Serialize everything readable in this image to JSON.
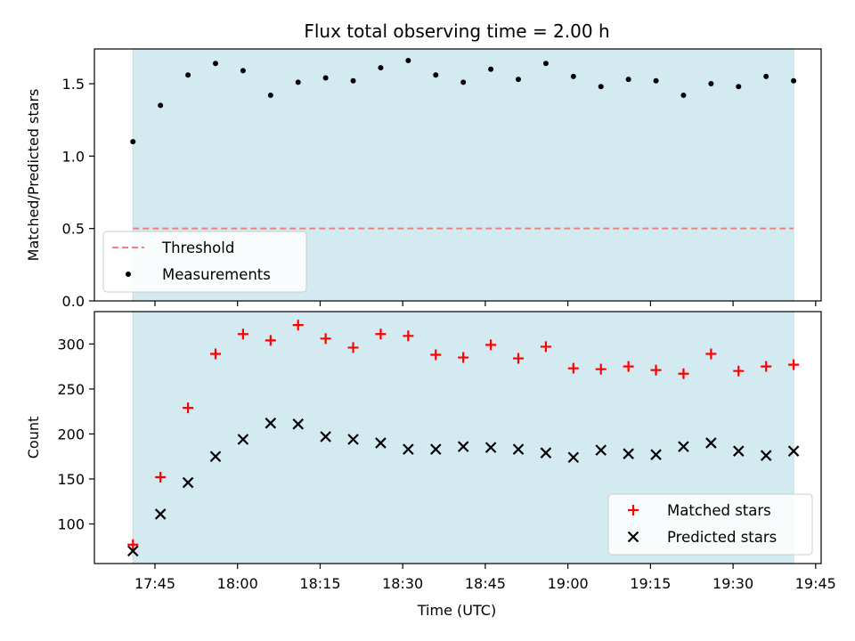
{
  "chart_data": {
    "title": "Flux total observing time = 2.00 h",
    "xlabel": "Time (UTC)",
    "x_tick_labels": [
      "17:45",
      "18:00",
      "18:15",
      "18:30",
      "18:45",
      "19:00",
      "19:15",
      "19:30",
      "19:45"
    ],
    "x_tick_minutes": [
      1065,
      1080,
      1095,
      1110,
      1125,
      1140,
      1155,
      1170,
      1185
    ],
    "x_range_minutes": [
      1054,
      1186
    ],
    "observing_window_minutes": [
      1061,
      1181
    ],
    "window_color": "#d3eaf0",
    "times": [
      "17:41",
      "17:46",
      "17:51",
      "17:56",
      "18:01",
      "18:06",
      "18:11",
      "18:16",
      "18:21",
      "18:26",
      "18:31",
      "18:36",
      "18:41",
      "18:46",
      "18:51",
      "18:56",
      "19:01",
      "19:06",
      "19:11",
      "19:16",
      "19:21",
      "19:26",
      "19:31",
      "19:36",
      "19:41"
    ],
    "panels": [
      {
        "type": "scatter",
        "ylabel": "Matched/Predicted stars",
        "ylim": [
          0,
          1.74
        ],
        "y_ticks": [
          0.0,
          0.5,
          1.0,
          1.5
        ],
        "y_tick_labels": [
          "0.0",
          "0.5",
          "1.0",
          "1.5"
        ],
        "threshold": {
          "name": "Threshold",
          "value": 0.5,
          "color": "#f08080",
          "style": "dashed"
        },
        "series": [
          {
            "name": "Measurements",
            "marker": "dot",
            "color": "#000000",
            "values": [
              1.1,
              1.35,
              1.56,
              1.64,
              1.59,
              1.42,
              1.51,
              1.54,
              1.52,
              1.61,
              1.66,
              1.56,
              1.51,
              1.6,
              1.53,
              1.64,
              1.55,
              1.48,
              1.53,
              1.52,
              1.42,
              1.5,
              1.48,
              1.55,
              1.52
            ]
          }
        ],
        "legend_position": "lower-left"
      },
      {
        "type": "scatter",
        "ylabel": "Count",
        "ylim": [
          56,
          336
        ],
        "y_ticks": [
          100,
          150,
          200,
          250,
          300
        ],
        "y_tick_labels": [
          "100",
          "150",
          "200",
          "250",
          "300"
        ],
        "series": [
          {
            "name": "Matched stars",
            "marker": "plus",
            "color": "#ff0000",
            "values": [
              77,
              152,
              229,
              289,
              311,
              304,
              321,
              306,
              296,
              311,
              309,
              288,
              285,
              299,
              284,
              297,
              273,
              272,
              275,
              271,
              267,
              289,
              270,
              275,
              277
            ]
          },
          {
            "name": "Predicted stars",
            "marker": "x",
            "color": "#000000",
            "values": [
              70,
              111,
              146,
              175,
              194,
              212,
              211,
              197,
              194,
              190,
              183,
              183,
              186,
              185,
              183,
              179,
              174,
              182,
              178,
              177,
              186,
              190,
              181,
              176,
              181
            ]
          }
        ],
        "legend_position": "lower-right"
      }
    ]
  }
}
